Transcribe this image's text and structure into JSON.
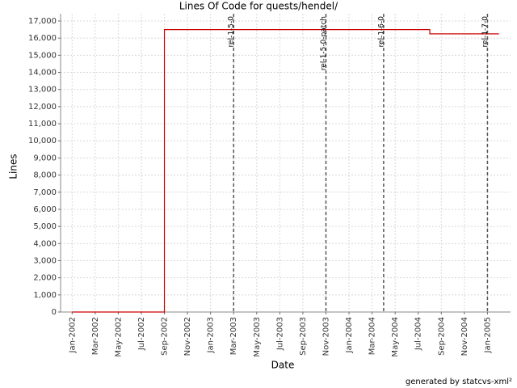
{
  "chart_data": {
    "type": "line",
    "step": true,
    "title": "Lines Of Code for quests/hendel/",
    "x_label": "Date",
    "y_label": "Lines",
    "footer": "generated by statcvs-xml²",
    "x": [
      "2002-01",
      "2002-09",
      "2004-08",
      "2005-02"
    ],
    "series": [
      {
        "name": "Lines",
        "color": "#cc0000",
        "values": [
          0,
          16500,
          16250,
          16250
        ]
      }
    ],
    "xlim": [
      "2001-12",
      "2005-03"
    ],
    "xticks": [
      {
        "value": "2002-01",
        "label": "Jan-2002"
      },
      {
        "value": "2002-03",
        "label": "Mar-2002"
      },
      {
        "value": "2002-05",
        "label": "May-2002"
      },
      {
        "value": "2002-07",
        "label": "Jul-2002"
      },
      {
        "value": "2002-09",
        "label": "Sep-2002"
      },
      {
        "value": "2002-11",
        "label": "Nov-2002"
      },
      {
        "value": "2003-01",
        "label": "Jan-2003"
      },
      {
        "value": "2003-03",
        "label": "Mar-2003"
      },
      {
        "value": "2003-05",
        "label": "May-2003"
      },
      {
        "value": "2003-07",
        "label": "Jul-2003"
      },
      {
        "value": "2003-09",
        "label": "Sep-2003"
      },
      {
        "value": "2003-11",
        "label": "Nov-2003"
      },
      {
        "value": "2004-01",
        "label": "Jan-2004"
      },
      {
        "value": "2004-03",
        "label": "Mar-2004"
      },
      {
        "value": "2004-05",
        "label": "May-2004"
      },
      {
        "value": "2004-07",
        "label": "Jul-2004"
      },
      {
        "value": "2004-09",
        "label": "Sep-2004"
      },
      {
        "value": "2004-11",
        "label": "Nov-2004"
      },
      {
        "value": "2005-01",
        "label": "Jan-2005"
      }
    ],
    "ylim": [
      0,
      17000
    ],
    "yticks": [
      0,
      {
        "value": 1000,
        "label": "1,000"
      },
      {
        "value": 2000,
        "label": "2,000"
      },
      {
        "value": 3000,
        "label": "3,000"
      },
      {
        "value": 4000,
        "label": "4,000"
      },
      {
        "value": 5000,
        "label": "5,000"
      },
      {
        "value": 6000,
        "label": "6,000"
      },
      {
        "value": 7000,
        "label": "7,000"
      },
      {
        "value": 8000,
        "label": "8,000"
      },
      {
        "value": 9000,
        "label": "9,000"
      },
      {
        "value": 10000,
        "label": "10,000"
      },
      {
        "value": 11000,
        "label": "11,000"
      },
      {
        "value": 12000,
        "label": "12,000"
      },
      {
        "value": 13000,
        "label": "13,000"
      },
      {
        "value": 14000,
        "label": "14,000"
      },
      {
        "value": 15000,
        "label": "15,000"
      },
      {
        "value": 16000,
        "label": "16,000"
      },
      {
        "value": 17000,
        "label": "17,000"
      }
    ],
    "grid": true,
    "markers": [
      {
        "x": "2003-03",
        "label": "rel-1-5-0"
      },
      {
        "x": "2003-11",
        "label": "rel-1-5-0-patch"
      },
      {
        "x": "2004-04",
        "label": "rel-1-6-0"
      },
      {
        "x": "2005-01",
        "label": "rel-1-7-0"
      }
    ],
    "marker_color": "#555555"
  }
}
